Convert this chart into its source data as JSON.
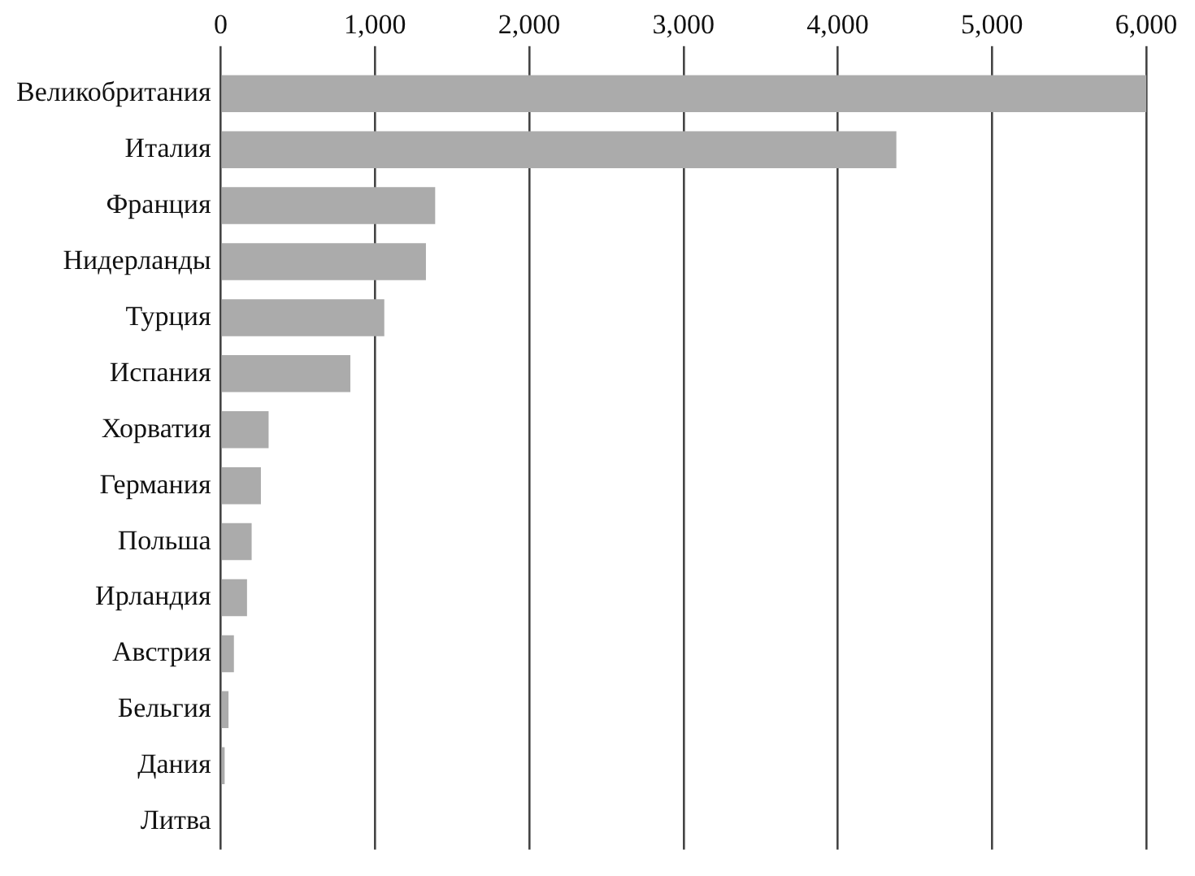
{
  "chart_data": {
    "type": "bar",
    "orientation": "horizontal",
    "categories": [
      "Великобритания",
      "Италия",
      "Франция",
      "Нидерланды",
      "Турция",
      "Испания",
      "Хорватия",
      "Германия",
      "Польша",
      "Ирландия",
      "Австрия",
      "Бельгия",
      "Дания",
      "Литва"
    ],
    "values": [
      6000,
      4380,
      1390,
      1330,
      1060,
      840,
      310,
      260,
      200,
      170,
      85,
      50,
      25,
      0
    ],
    "color": "#ababab",
    "xlim": [
      0,
      6000
    ],
    "xticks": [
      {
        "value": 0,
        "label": "0"
      },
      {
        "value": 1000,
        "label": "1,000"
      },
      {
        "value": 2000,
        "label": "2,000"
      },
      {
        "value": 3000,
        "label": "3,000"
      },
      {
        "value": 4000,
        "label": "4,000"
      },
      {
        "value": 5000,
        "label": "5,000"
      },
      {
        "value": 6000,
        "label": "6,000"
      }
    ],
    "grid": "x",
    "legend": false
  }
}
